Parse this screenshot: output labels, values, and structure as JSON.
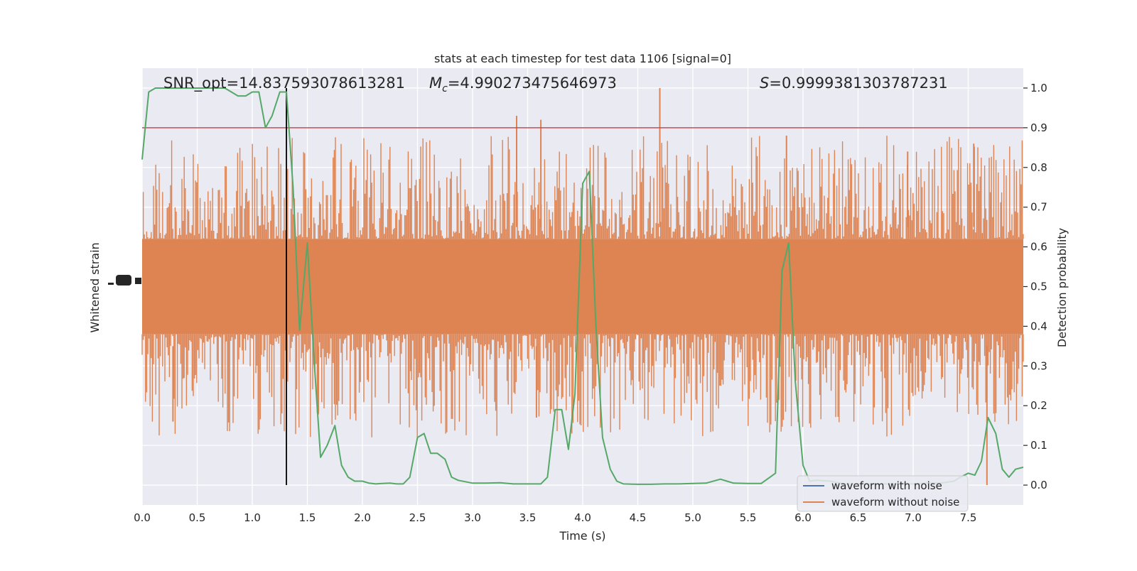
{
  "chart_data": {
    "type": "line",
    "title": "stats at each timestep for test data 1106 [signal=0]",
    "xlabel": "Time (s)",
    "ylabel_left": "Whitened strain",
    "ylabel_right": "Detection probability",
    "xlim": [
      0,
      8
    ],
    "ylim_right": [
      -0.05,
      1.05
    ],
    "x_ticks": [
      "0.0",
      "0.5",
      "1.0",
      "1.5",
      "2.0",
      "2.5",
      "3.0",
      "3.5",
      "4.0",
      "4.5",
      "5.0",
      "5.5",
      "6.0",
      "6.5",
      "7.0",
      "7.5"
    ],
    "y_ticks_right": [
      "0.0",
      "0.1",
      "0.2",
      "0.3",
      "0.4",
      "0.5",
      "0.6",
      "0.7",
      "0.8",
      "0.9",
      "1.0"
    ],
    "grid": true,
    "annotations": {
      "snr": "SNR_opt=14.837593078613281",
      "mc_symbol": "M",
      "mc_sub": "c",
      "mc_value": "=4.990273475646973",
      "s_symbol": "S",
      "s_value": "=0.9999381303787231"
    },
    "legend": {
      "placement": "lower-right",
      "entries": [
        {
          "label": "waveform with noise",
          "color": "#4c72b0"
        },
        {
          "label": "waveform without noise",
          "color": "#dd8452"
        }
      ]
    },
    "threshold": {
      "y": 0.9,
      "color": "#c44e52"
    },
    "marker_line": {
      "x": 1.31,
      "color": "#000000"
    },
    "colors": {
      "noise": "#dd8452",
      "probability": "#55a868",
      "background": "#eaeaf2"
    },
    "series": [
      {
        "name": "Detection probability",
        "x": [
          0.0,
          0.06,
          0.12,
          0.25,
          0.37,
          0.5,
          0.62,
          0.75,
          0.81,
          0.87,
          0.94,
          1.0,
          1.06,
          1.12,
          1.18,
          1.25,
          1.31,
          1.37,
          1.43,
          1.5,
          1.56,
          1.62,
          1.68,
          1.75,
          1.81,
          1.87,
          1.93,
          2.0,
          2.06,
          2.12,
          2.18,
          2.25,
          2.31,
          2.37,
          2.43,
          2.5,
          2.56,
          2.62,
          2.68,
          2.75,
          2.81,
          2.87,
          3.0,
          3.12,
          3.25,
          3.37,
          3.5,
          3.62,
          3.68,
          3.75,
          3.81,
          3.87,
          3.93,
          4.0,
          4.06,
          4.12,
          4.18,
          4.25,
          4.31,
          4.37,
          4.5,
          4.62,
          4.75,
          4.87,
          5.0,
          5.12,
          5.25,
          5.31,
          5.37,
          5.5,
          5.62,
          5.75,
          5.81,
          5.87,
          5.93,
          6.0,
          6.06,
          6.12,
          6.25,
          6.37,
          6.5,
          6.62,
          6.75,
          6.87,
          7.0,
          7.12,
          7.25,
          7.37,
          7.43,
          7.5,
          7.56,
          7.62,
          7.68,
          7.75,
          7.81,
          7.87,
          7.93,
          8.0
        ],
        "y": [
          0.82,
          0.99,
          1.0,
          1.0,
          1.0,
          1.0,
          1.0,
          1.0,
          0.99,
          0.98,
          0.98,
          0.99,
          0.99,
          0.9,
          0.93,
          0.99,
          0.99,
          0.75,
          0.39,
          0.61,
          0.32,
          0.07,
          0.1,
          0.15,
          0.05,
          0.02,
          0.01,
          0.01,
          0.005,
          0.003,
          0.004,
          0.005,
          0.003,
          0.003,
          0.02,
          0.12,
          0.13,
          0.08,
          0.08,
          0.065,
          0.02,
          0.012,
          0.005,
          0.005,
          0.006,
          0.003,
          0.003,
          0.003,
          0.02,
          0.19,
          0.19,
          0.09,
          0.23,
          0.76,
          0.79,
          0.4,
          0.12,
          0.04,
          0.01,
          0.003,
          0.002,
          0.002,
          0.003,
          0.003,
          0.004,
          0.005,
          0.015,
          0.01,
          0.005,
          0.004,
          0.004,
          0.03,
          0.54,
          0.61,
          0.26,
          0.05,
          0.01,
          0.012,
          0.01,
          0.003,
          0.003,
          0.003,
          0.003,
          0.003,
          0.003,
          0.005,
          0.005,
          0.01,
          0.02,
          0.03,
          0.025,
          0.06,
          0.17,
          0.13,
          0.04,
          0.02,
          0.04,
          0.045
        ]
      }
    ],
    "noise_envelope": {
      "center": 0.5,
      "typical_low": 0.3,
      "typical_high": 0.7,
      "peaks": [
        {
          "x": 4.7,
          "y": 1.0
        },
        {
          "x": 3.4,
          "y": 0.93
        },
        {
          "x": 3.62,
          "y": 0.92
        },
        {
          "x": 5.85,
          "y": 0.88
        },
        {
          "x": 0.28,
          "y": 0.16
        },
        {
          "x": 7.67,
          "y": 0.0
        },
        {
          "x": 1.6,
          "y": 0.18
        },
        {
          "x": 3.58,
          "y": 0.17
        },
        {
          "x": 6.95,
          "y": 0.84
        },
        {
          "x": 7.55,
          "y": 0.86
        }
      ]
    }
  }
}
